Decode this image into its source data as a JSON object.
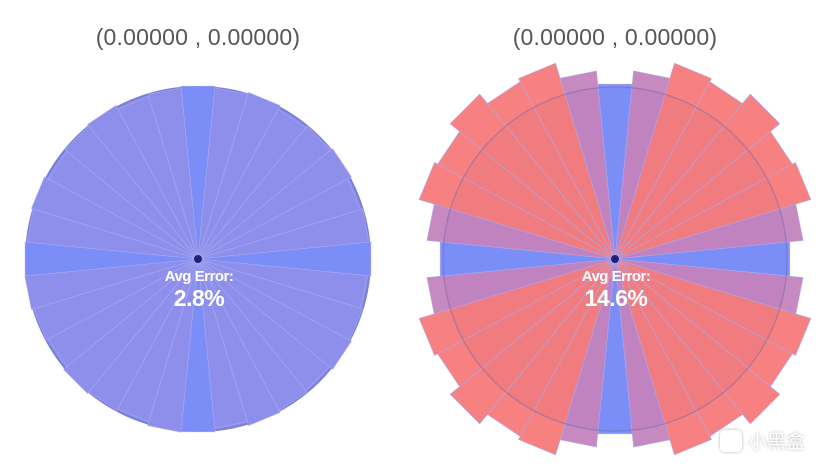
{
  "panels": [
    {
      "coordinate_text": "(0.00000 , 0.00000)",
      "avg_error_label": "Avg Error:",
      "avg_error_value": "2.8%",
      "avg_error_percent": 2.8,
      "sector_count": 32,
      "error_amplitude": 0.0,
      "diagonal_error_amplitude": 0.0
    },
    {
      "coordinate_text": "(0.00000 , 0.00000)",
      "avg_error_label": "Avg Error:",
      "avg_error_value": "14.6%",
      "avg_error_percent": 14.6,
      "sector_count": 32,
      "error_amplitude": 0.14,
      "diagonal_error_amplitude": 0.1
    }
  ],
  "colors": {
    "reference_circle": "#8c8fe8",
    "reference_circle_border": "#7a7fd8",
    "axis_sector": "#7b8df8",
    "sector_fill": "#8f90ec",
    "error_fill": "#f77b7b",
    "overlap_fill": "#c483bd",
    "sector_line": "#a9aaf0",
    "center_dot": "#1a237e"
  },
  "watermark": {
    "text": "小黑盒",
    "icon": "heybox-logo-icon"
  }
}
